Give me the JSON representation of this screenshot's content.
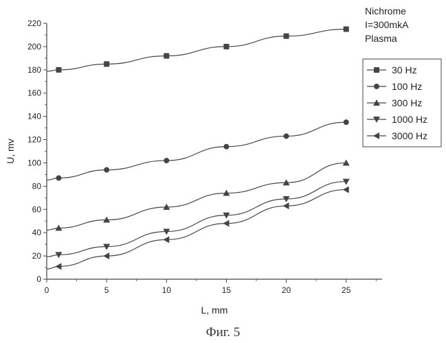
{
  "chart_data": {
    "type": "line",
    "xlabel": "L, mm",
    "ylabel": "U, mv",
    "xlim": [
      0,
      28
    ],
    "ylim": [
      0,
      220
    ],
    "xticks": [
      0,
      5,
      10,
      15,
      20,
      25
    ],
    "yticks": [
      0,
      20,
      40,
      60,
      80,
      100,
      120,
      140,
      160,
      180,
      200,
      220
    ],
    "annotation": [
      "Nichrome",
      "I=300mkA",
      "Plasma"
    ],
    "legend_position": "right",
    "grid": false,
    "line_color": "#444444",
    "series": [
      {
        "name": "30 Hz",
        "marker": "square",
        "x": [
          1,
          5,
          10,
          15,
          20,
          25
        ],
        "y": [
          180,
          185,
          192,
          200,
          209,
          215
        ]
      },
      {
        "name": "100 Hz",
        "marker": "circle",
        "x": [
          1,
          5,
          10,
          15,
          20,
          25
        ],
        "y": [
          87,
          94,
          102,
          114,
          123,
          135
        ]
      },
      {
        "name": "300 Hz",
        "marker": "triangle-up",
        "x": [
          1,
          5,
          10,
          15,
          20,
          25
        ],
        "y": [
          44,
          51,
          62,
          74,
          83,
          100
        ]
      },
      {
        "name": "1000 Hz",
        "marker": "triangle-down",
        "x": [
          1,
          5,
          10,
          15,
          20,
          25
        ],
        "y": [
          21,
          28,
          41,
          55,
          69,
          84
        ]
      },
      {
        "name": "3000 Hz",
        "marker": "triangle-left",
        "x": [
          1,
          5,
          10,
          15,
          20,
          25
        ],
        "y": [
          11,
          20,
          34,
          48,
          63,
          77
        ]
      }
    ]
  },
  "caption": "Фиг. 5"
}
